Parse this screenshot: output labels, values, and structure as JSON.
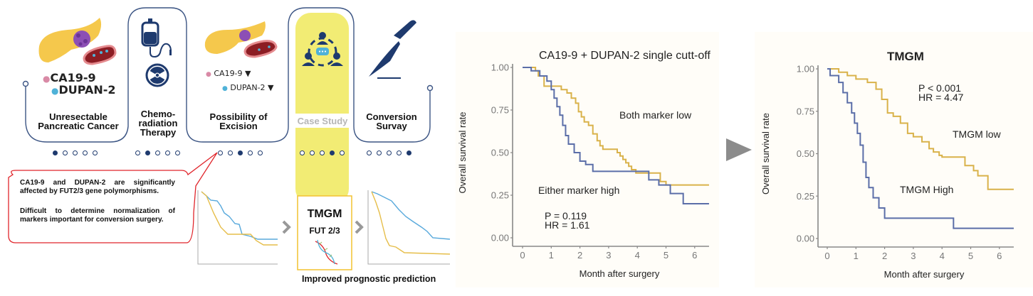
{
  "workflow": {
    "steps": [
      {
        "title": "Unresectable\nPancreatic Cancer",
        "dots_active": 0
      },
      {
        "title": "Chemo-\nradiation\nTherapy",
        "dots_active": 1
      },
      {
        "title": "Possibility of\nExcision",
        "dots_active": 2
      },
      {
        "title": "Case Study",
        "dots_active": 3
      },
      {
        "title": "Conversion\nSurvay",
        "dots_active": 4
      }
    ],
    "markers_step1": [
      "CA19-9",
      "DUPAN-2"
    ],
    "markers_step3": [
      "CA19-9 ▼",
      "DUPAN-2 ▼"
    ],
    "callout": {
      "para1": "CA19-9 and DUPAN-2 are significantly affected by FUT2/3 gene polymorphisms.",
      "para2": "Difficult to determine normalization of markers important for conversion surgery."
    },
    "tmgm_box": {
      "title": "TMGM",
      "subtitle": "FUT 2/3"
    },
    "improved_label": "Improved prognostic prediction",
    "colors": {
      "navy": "#1e3a6e",
      "yellow": "#f2ec74",
      "callout_red": "#e0252b",
      "pancreas": "#f5c84c",
      "marker_pink": "#d98aa6",
      "marker_blue": "#4fb2d8",
      "mini_blue": "#58a9dc",
      "mini_yellow": "#e6be4a"
    }
  },
  "chart_data": [
    {
      "type": "line",
      "subtype": "kaplan-meier",
      "title": "CA19-9 + DUPAN-2 single cutt-off",
      "xlabel": "Month after surgery",
      "ylabel": "Overall survival rate",
      "xlim": [
        -0.1,
        6.5
      ],
      "ylim": [
        0,
        1
      ],
      "xticks": [
        "0",
        "1",
        "2",
        "3",
        "4",
        "5",
        "6"
      ],
      "yticks": [
        "0.00",
        "0.25",
        "0.50",
        "0.75",
        "1.00"
      ],
      "annotations": {
        "p": "P = 0.119",
        "hr": "HR = 1.61",
        "low_label": "Both marker low",
        "high_label": "Either marker high"
      },
      "series": [
        {
          "name": "Both marker low",
          "color": "#d9b24a",
          "x": [
            0,
            0.45,
            0.55,
            0.75,
            1.35,
            1.55,
            1.7,
            1.85,
            1.95,
            2.05,
            2.15,
            2.3,
            2.45,
            2.6,
            2.7,
            2.8,
            3.0,
            3.3,
            3.4,
            3.5,
            3.6,
            3.7,
            3.8,
            3.95,
            4.0,
            4.8,
            5.0,
            6.5
          ],
          "y": [
            1.0,
            0.98,
            0.95,
            0.89,
            0.87,
            0.85,
            0.82,
            0.79,
            0.74,
            0.71,
            0.68,
            0.66,
            0.61,
            0.57,
            0.54,
            0.52,
            0.52,
            0.5,
            0.48,
            0.46,
            0.44,
            0.42,
            0.4,
            0.38,
            0.38,
            0.33,
            0.31,
            0.31
          ]
        },
        {
          "name": "Either marker high",
          "color": "#5b6ea8",
          "x": [
            0,
            0.3,
            0.6,
            0.85,
            1.0,
            1.1,
            1.2,
            1.3,
            1.4,
            1.5,
            1.6,
            1.8,
            2.0,
            2.2,
            2.45,
            4.4,
            4.75,
            5.15,
            5.6,
            6.5
          ],
          "y": [
            1.0,
            0.98,
            0.95,
            0.92,
            0.87,
            0.82,
            0.77,
            0.72,
            0.66,
            0.6,
            0.55,
            0.5,
            0.45,
            0.43,
            0.39,
            0.34,
            0.31,
            0.26,
            0.2,
            0.2
          ]
        }
      ]
    },
    {
      "type": "line",
      "subtype": "kaplan-meier",
      "title": "TMGM",
      "xlabel": "Month after surgery",
      "ylabel": "Overall survival rate",
      "xlim": [
        -0.1,
        6.5
      ],
      "ylim": [
        0,
        1
      ],
      "xticks": [
        "0",
        "1",
        "2",
        "3",
        "4",
        "5",
        "6"
      ],
      "yticks": [
        "0.00",
        "0.25",
        "0.50",
        "0.75",
        "1.00"
      ],
      "annotations": {
        "p": "P < 0.001",
        "hr": "HR = 4.47",
        "low_label": "TMGM low",
        "high_label": "TMGM High"
      },
      "series": [
        {
          "name": "TMGM low",
          "color": "#d9b24a",
          "x": [
            0,
            0.4,
            0.7,
            1.0,
            1.4,
            1.7,
            1.9,
            2.1,
            2.3,
            2.55,
            2.8,
            3.0,
            3.3,
            3.55,
            3.7,
            3.9,
            4.0,
            4.5,
            4.8,
            5.1,
            5.25,
            5.6,
            6.5
          ],
          "y": [
            1.0,
            0.98,
            0.96,
            0.94,
            0.92,
            0.88,
            0.82,
            0.74,
            0.72,
            0.68,
            0.62,
            0.6,
            0.57,
            0.53,
            0.51,
            0.49,
            0.48,
            0.48,
            0.43,
            0.4,
            0.37,
            0.29,
            0.29
          ]
        },
        {
          "name": "TMGM High",
          "color": "#5b6ea8",
          "x": [
            0,
            0.1,
            0.4,
            0.55,
            0.7,
            0.85,
            0.95,
            1.05,
            1.15,
            1.25,
            1.35,
            1.45,
            1.6,
            1.8,
            2.0,
            2.5,
            4.4,
            6.5
          ],
          "y": [
            1.0,
            0.96,
            0.92,
            0.86,
            0.8,
            0.74,
            0.68,
            0.62,
            0.55,
            0.45,
            0.36,
            0.3,
            0.24,
            0.18,
            0.12,
            0.12,
            0.06,
            0.06
          ]
        }
      ]
    }
  ]
}
